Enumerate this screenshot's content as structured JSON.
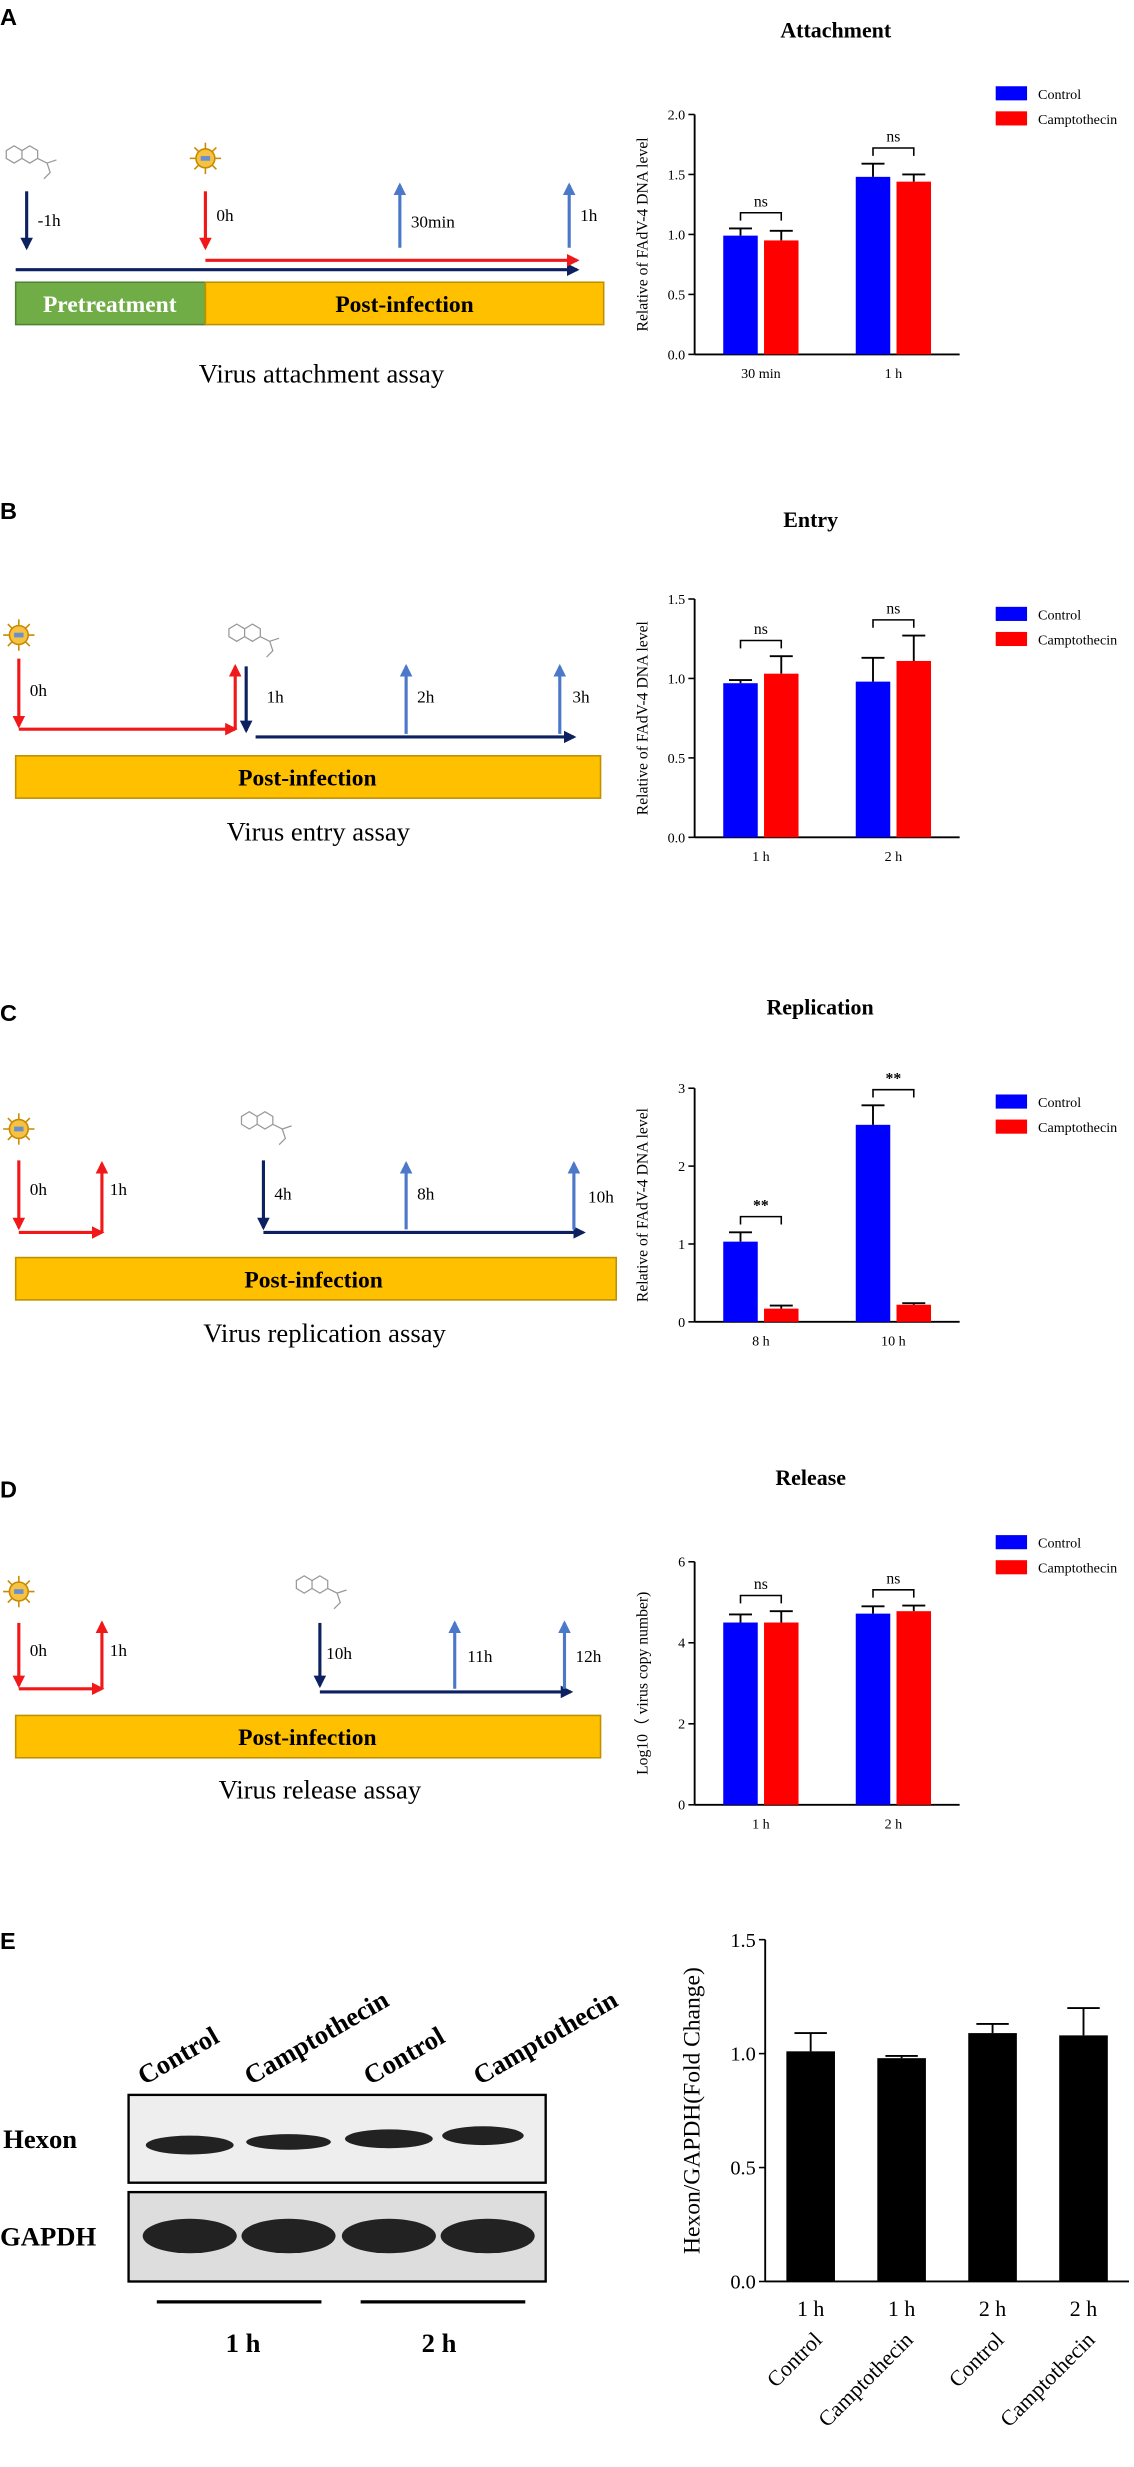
{
  "panels": [
    {
      "label": "A",
      "times": [
        "-1h",
        "0h",
        "30min",
        "1h"
      ],
      "boxes": [
        "Pretreatment",
        "Post-infection"
      ],
      "caption": "Virus attachment assay"
    },
    {
      "label": "B",
      "times": [
        "0h",
        "1h",
        "2h",
        "3h"
      ],
      "boxes": [
        "Post-infection"
      ],
      "caption": "Virus entry assay"
    },
    {
      "label": "C",
      "times": [
        "0h",
        "1h",
        "4h",
        "8h",
        "10h"
      ],
      "boxes": [
        "Post-infection"
      ],
      "caption": "Virus replication assay"
    },
    {
      "label": "D",
      "times": [
        "0h",
        "1h",
        "10h",
        "11h",
        "12h"
      ],
      "boxes": [
        "Post-infection"
      ],
      "caption": "Virus release assay"
    },
    {
      "label": "E"
    }
  ],
  "blot": {
    "lanes": [
      "Control",
      "Camptothecin",
      "Control",
      "Camptothecin"
    ],
    "rows": [
      "Hexon",
      "GAPDH"
    ],
    "groups": [
      "1 h",
      "2 h"
    ]
  },
  "chart_data": [
    {
      "type": "bar",
      "title": "Attachment",
      "ylabel": "Relative of FAdV-4 DNA level",
      "categories": [
        "30 min",
        "1 h"
      ],
      "series": [
        {
          "name": "Control",
          "color": "#0000ff",
          "values": [
            0.99,
            1.48
          ],
          "errors": [
            0.06,
            0.11
          ]
        },
        {
          "name": "Camptothecin",
          "color": "#ff0000",
          "values": [
            0.95,
            1.44
          ],
          "errors": [
            0.08,
            0.06
          ]
        }
      ],
      "annotations": [
        "ns",
        "ns"
      ],
      "ylim": [
        0,
        2
      ],
      "yticks": [
        {
          "value": 0,
          "label": "0.0"
        },
        {
          "value": 0.5,
          "label": "0.5"
        },
        {
          "value": 1,
          "label": "1.0"
        },
        {
          "value": 1.5,
          "label": "1.5"
        },
        {
          "value": 2,
          "label": "2.0"
        }
      ]
    },
    {
      "type": "bar",
      "title": "Entry",
      "ylabel": "Relative of FAdV-4 DNA level",
      "categories": [
        "1 h",
        "2 h"
      ],
      "series": [
        {
          "name": "Control",
          "color": "#0000ff",
          "values": [
            0.97,
            0.98
          ],
          "errors": [
            0.02,
            0.15
          ]
        },
        {
          "name": "Camptothecin",
          "color": "#ff0000",
          "values": [
            1.03,
            1.11
          ],
          "errors": [
            0.11,
            0.16
          ]
        }
      ],
      "annotations": [
        "ns",
        "ns"
      ],
      "ylim": [
        0,
        1.5
      ],
      "yticks": [
        {
          "value": 0,
          "label": "0.0"
        },
        {
          "value": 0.5,
          "label": "0.5"
        },
        {
          "value": 1,
          "label": "1.0"
        },
        {
          "value": 1.5,
          "label": "1.5"
        }
      ]
    },
    {
      "type": "bar",
      "title": "Replication",
      "ylabel": "Relative of FAdV-4 DNA level",
      "categories": [
        "8 h",
        "10 h"
      ],
      "series": [
        {
          "name": "Control",
          "color": "#0000ff",
          "values": [
            1.03,
            2.53
          ],
          "errors": [
            0.12,
            0.25
          ]
        },
        {
          "name": "Camptothecin",
          "color": "#ff0000",
          "values": [
            0.17,
            0.22
          ],
          "errors": [
            0.04,
            0.02
          ]
        }
      ],
      "annotations": [
        "**",
        "**"
      ],
      "ylim": [
        0,
        3
      ],
      "yticks": [
        0,
        1,
        2,
        3
      ]
    },
    {
      "type": "bar",
      "title": "Release",
      "ylabel": "Log10（ virus copy number)",
      "categories": [
        "1 h",
        "2 h"
      ],
      "series": [
        {
          "name": "Control",
          "color": "#0000ff",
          "values": [
            4.5,
            4.72
          ],
          "errors": [
            0.2,
            0.18
          ]
        },
        {
          "name": "Camptothecin",
          "color": "#ff0000",
          "values": [
            4.5,
            4.78
          ],
          "errors": [
            0.28,
            0.14
          ]
        }
      ],
      "annotations": [
        "ns",
        "ns"
      ],
      "ylim": [
        0,
        6
      ],
      "yticks": [
        0,
        2,
        4,
        6
      ]
    },
    {
      "type": "bar",
      "ylabel": "Hexon/GAPDH(Fold Change)",
      "times": [
        "1 h",
        "1 h",
        "2 h",
        "2 h"
      ],
      "categories": [
        "Control",
        "Camptothecin",
        "Control",
        "Camptothecin"
      ],
      "series": [
        {
          "color": "#000000",
          "values": [
            1.01,
            0.98,
            1.09,
            1.08
          ],
          "errors": [
            0.08,
            0.01,
            0.04,
            0.12
          ]
        }
      ],
      "ylim": [
        0,
        1.5
      ],
      "yticks": [
        {
          "value": 0,
          "label": "0.0"
        },
        {
          "value": 0.5,
          "label": "0.5"
        },
        {
          "value": 1,
          "label": "1.0"
        },
        {
          "value": 1.5,
          "label": "1.5"
        }
      ]
    }
  ]
}
